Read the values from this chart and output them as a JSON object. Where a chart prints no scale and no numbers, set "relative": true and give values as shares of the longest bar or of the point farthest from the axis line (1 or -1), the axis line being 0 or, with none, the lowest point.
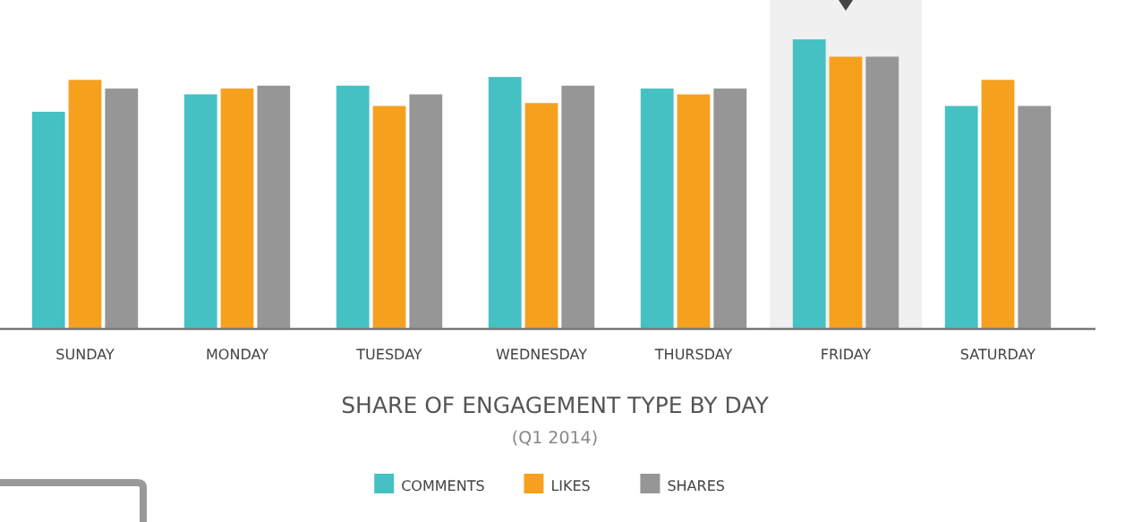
{
  "chart_data": {
    "type": "bar",
    "relative": true,
    "title": "SHARE OF ENGAGEMENT TYPE BY DAY",
    "subtitle": "(Q1 2014)",
    "categories": [
      "SUNDAY",
      "MONDAY",
      "TUESDAY",
      "WEDNESDAY",
      "THURSDAY",
      "FRIDAY",
      "SATURDAY"
    ],
    "series": [
      {
        "name": "COMMENTS",
        "color": "#45c1c4",
        "values": [
          0.75,
          0.81,
          0.84,
          0.87,
          0.83,
          1,
          0.77
        ]
      },
      {
        "name": "LIKES",
        "color": "#f5a11e",
        "values": [
          0.86,
          0.83,
          0.77,
          0.78,
          0.81,
          0.94,
          0.86
        ]
      },
      {
        "name": "SHARES",
        "color": "#969696",
        "values": [
          0.83,
          0.84,
          0.81,
          0.84,
          0.83,
          0.94,
          0.77
        ]
      }
    ],
    "bands": [
      {
        "axis": "x",
        "from": "FRIDAY",
        "to": "FRIDAY",
        "color": "#f0f0f0"
      }
    ],
    "legend": "bottom"
  }
}
